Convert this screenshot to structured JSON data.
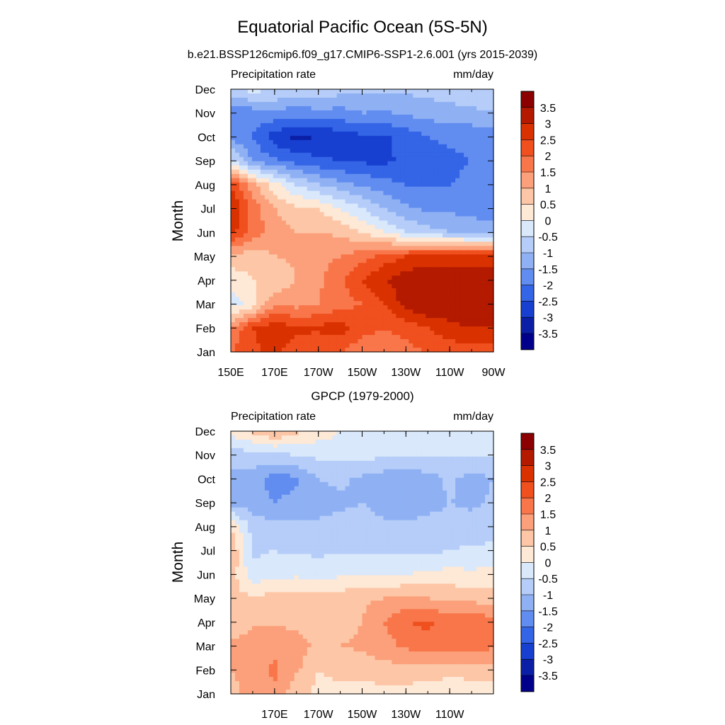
{
  "title": "Equatorial Pacific Ocean (5S-5N)",
  "colorbar": {
    "labels": [
      "3.5",
      "3",
      "2.5",
      "2",
      "1.5",
      "1",
      "0.5",
      "0",
      "-0.5",
      "-1",
      "-1.5",
      "-2",
      "-2.5",
      "-3",
      "-3.5"
    ],
    "colors": [
      "#8b0000",
      "#b31a00",
      "#d93200",
      "#f04f1e",
      "#f8764a",
      "#fba07a",
      "#fdc6a6",
      "#fee8d6",
      "#d9e8fb",
      "#b5cdf8",
      "#8fb1f4",
      "#628df0",
      "#3465e6",
      "#1840d0",
      "#0a1fa6",
      "#00008b"
    ]
  },
  "chart_data": [
    {
      "type": "heatmap",
      "title": "b.e21.BSSP126cmip6.f09_g17.CMIP6-SSP1-2.6.001 (yrs 2015-2039)",
      "left_label": "Precipitation rate",
      "right_label": "mm/day",
      "ylabel": "Month",
      "x_ticks": [
        "150E",
        "170E",
        "170W",
        "150W",
        "130W",
        "110W",
        "90W"
      ],
      "y_ticks": [
        "Jan",
        "Feb",
        "Mar",
        "Apr",
        "May",
        "Jun",
        "Jul",
        "Aug",
        "Sep",
        "Oct",
        "Nov",
        "Dec"
      ],
      "xlim": [
        "150E",
        "90W"
      ],
      "ylim": [
        "Jan",
        "Dec"
      ],
      "units": "mm/day",
      "levels": [
        -3.5,
        -3,
        -2.5,
        -2,
        -1.5,
        -1,
        -0.5,
        0,
        0.5,
        1,
        1.5,
        2,
        2.5,
        3,
        3.5
      ],
      "x": [
        "150E",
        "160E",
        "170E",
        "180",
        "170W",
        "160W",
        "150W",
        "140W",
        "130W",
        "120W",
        "110W",
        "100W",
        "90W"
      ],
      "y": [
        "Jan",
        "Feb",
        "Mar",
        "Apr",
        "May",
        "Jun",
        "Jul",
        "Aug",
        "Sep",
        "Oct",
        "Nov",
        "Dec"
      ],
      "values": [
        [
          2.0,
          2.4,
          2.6,
          2.3,
          2.0,
          2.0,
          1.6,
          1.6,
          1.8,
          2.0,
          2.2,
          2.3,
          2.3
        ],
        [
          1.5,
          2.5,
          2.8,
          2.6,
          2.6,
          2.8,
          2.2,
          2.0,
          2.2,
          2.5,
          2.8,
          3.0,
          3.0
        ],
        [
          -0.3,
          0.2,
          1.5,
          1.3,
          1.5,
          1.8,
          2.0,
          2.5,
          3.2,
          3.5,
          3.5,
          3.5,
          3.4
        ],
        [
          0.2,
          0.5,
          0.5,
          1.0,
          1.4,
          1.9,
          2.5,
          3.0,
          3.3,
          3.5,
          3.5,
          3.4,
          3.3
        ],
        [
          0.8,
          0.7,
          1.0,
          1.1,
          1.3,
          1.5,
          1.8,
          2.2,
          2.5,
          2.7,
          2.7,
          2.7,
          2.7
        ],
        [
          2.7,
          1.8,
          1.3,
          1.0,
          1.0,
          0.9,
          0.5,
          0.0,
          -0.5,
          -0.8,
          -1.0,
          -1.2,
          -1.3
        ],
        [
          3.1,
          1.8,
          1.0,
          0.6,
          0.5,
          0.0,
          -0.5,
          -1.0,
          -1.4,
          -1.6,
          -1.6,
          -1.7,
          -1.7
        ],
        [
          2.4,
          1.2,
          0.2,
          -0.5,
          -1.0,
          -1.3,
          -1.6,
          -1.8,
          -2.0,
          -2.0,
          -2.0,
          -1.9,
          -1.9
        ],
        [
          -0.3,
          -1.6,
          -1.9,
          -2.2,
          -2.4,
          -2.5,
          -2.6,
          -2.6,
          -2.4,
          -2.3,
          -2.1,
          -2.0,
          -2.0
        ],
        [
          -1.7,
          -2.0,
          -2.8,
          -3.1,
          -3.0,
          -2.8,
          -2.6,
          -2.6,
          -2.3,
          -2.0,
          -1.9,
          -1.9,
          -1.8
        ],
        [
          -1.9,
          -1.8,
          -1.6,
          -1.8,
          -1.7,
          -1.7,
          -1.5,
          -1.6,
          -1.4,
          -1.3,
          -1.2,
          -1.1,
          -1.0
        ],
        [
          -0.6,
          -0.3,
          -0.5,
          -0.7,
          -0.5,
          -0.8,
          -0.9,
          -0.9,
          -0.9,
          -0.8,
          -0.7,
          -0.7,
          -0.6
        ]
      ]
    },
    {
      "type": "heatmap",
      "title": "GPCP (1979-2000)",
      "left_label": "Precipitation rate",
      "right_label": "mm/day",
      "ylabel": "Month",
      "x_ticks": [
        "170E",
        "170W",
        "150W",
        "130W",
        "110W"
      ],
      "y_ticks": [
        "Jan",
        "Feb",
        "Mar",
        "Apr",
        "May",
        "Jun",
        "Jul",
        "Aug",
        "Sep",
        "Oct",
        "Nov",
        "Dec"
      ],
      "xlim": [
        "150E",
        "90W"
      ],
      "ylim": [
        "Jan",
        "Dec"
      ],
      "units": "mm/day",
      "levels": [
        -3.5,
        -3,
        -2.5,
        -2,
        -1.5,
        -1,
        -0.5,
        0,
        0.5,
        1,
        1.5,
        2,
        2.5,
        3,
        3.5
      ],
      "x": [
        "150E",
        "160E",
        "170E",
        "180",
        "170W",
        "160W",
        "150W",
        "140W",
        "130W",
        "120W",
        "110W",
        "100W",
        "90W"
      ],
      "y": [
        "Jan",
        "Feb",
        "Mar",
        "Apr",
        "May",
        "Jun",
        "Jul",
        "Aug",
        "Sep",
        "Oct",
        "Nov",
        "Dec"
      ],
      "values": [
        [
          0.8,
          1.2,
          1.4,
          0.6,
          0.4,
          0.4,
          0.3,
          0.3,
          0.3,
          0.2,
          0.1,
          0.2,
          0.2
        ],
        [
          1.0,
          1.3,
          1.6,
          1.1,
          0.5,
          0.6,
          0.7,
          0.8,
          0.8,
          0.8,
          0.7,
          0.7,
          0.7
        ],
        [
          1.1,
          1.3,
          1.4,
          1.2,
          0.9,
          1.0,
          1.1,
          1.3,
          1.6,
          1.8,
          1.7,
          1.8,
          1.6
        ],
        [
          0.6,
          0.9,
          0.9,
          0.9,
          0.8,
          0.7,
          1.0,
          1.5,
          2.0,
          2.1,
          1.8,
          2.0,
          1.7
        ],
        [
          0.6,
          0.6,
          0.7,
          0.8,
          0.8,
          0.8,
          0.9,
          1.0,
          1.1,
          1.0,
          0.9,
          0.8,
          0.7
        ],
        [
          0.8,
          -0.3,
          -0.2,
          -0.1,
          -0.2,
          -0.1,
          -0.1,
          -0.1,
          0.0,
          0.1,
          0.2,
          0.1,
          0.2
        ],
        [
          1.0,
          -0.6,
          -0.5,
          -0.6,
          -0.6,
          -0.6,
          -0.6,
          -0.6,
          -0.6,
          -0.6,
          -0.5,
          -0.4,
          -0.4
        ],
        [
          0.5,
          -0.7,
          -0.8,
          -0.9,
          -0.9,
          -0.8,
          -0.8,
          -0.9,
          -0.9,
          -0.8,
          -0.8,
          -0.8,
          -0.7
        ],
        [
          -1.2,
          -1.3,
          -1.5,
          -1.3,
          -1.2,
          -1.1,
          -1.0,
          -1.2,
          -1.3,
          -1.2,
          -1.0,
          -1.1,
          -0.9
        ],
        [
          -1.1,
          -1.2,
          -1.8,
          -1.6,
          -1.0,
          -0.9,
          -1.1,
          -1.3,
          -1.3,
          -1.2,
          -0.9,
          -1.2,
          -1.0
        ],
        [
          -0.8,
          -0.7,
          -0.6,
          -0.5,
          -0.4,
          -0.3,
          -0.3,
          -0.4,
          -0.5,
          -0.5,
          -0.5,
          -0.5,
          -0.5
        ],
        [
          0.2,
          0.6,
          1.0,
          0.6,
          0.3,
          0.0,
          -0.1,
          -0.2,
          -0.3,
          -0.3,
          -0.4,
          -0.4,
          -0.4
        ]
      ]
    }
  ]
}
